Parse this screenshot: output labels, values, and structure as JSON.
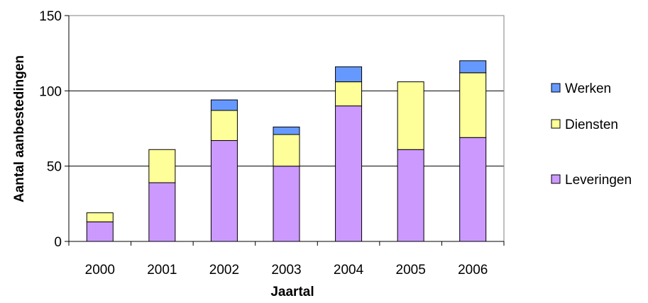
{
  "chart_data": {
    "type": "bar",
    "stacked": true,
    "categories": [
      "2000",
      "2001",
      "2002",
      "2003",
      "2004",
      "2005",
      "2006"
    ],
    "series": [
      {
        "name": "Leveringen",
        "color": "#cc99ff",
        "values": [
          13,
          39,
          67,
          50,
          90,
          61,
          69
        ]
      },
      {
        "name": "Diensten",
        "color": "#ffff99",
        "values": [
          6,
          22,
          20,
          21,
          16,
          45,
          43
        ]
      },
      {
        "name": "Werken",
        "color": "#6699ff",
        "values": [
          0,
          0,
          7,
          5,
          10,
          0,
          8
        ]
      }
    ],
    "xlabel": "Jaartal",
    "ylabel": "Aantal aanbestedingen",
    "ylim": [
      0,
      150
    ],
    "yticks": [
      0,
      50,
      100,
      150
    ],
    "grid": true,
    "legend_position": "right",
    "legend_order": [
      "Werken",
      "Diensten",
      "Leveringen"
    ]
  }
}
